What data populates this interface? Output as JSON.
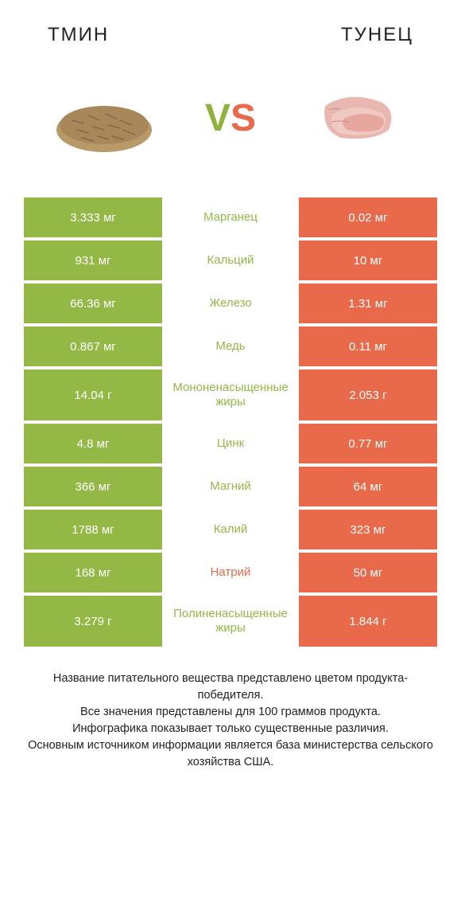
{
  "left_title": "ТМИН",
  "right_title": "ТУНЕЦ",
  "vs_v": "V",
  "vs_s": "S",
  "colors": {
    "left": "#94b846",
    "right": "#e86a4a",
    "mid_bg": "#ffffff",
    "text_white": "#ffffff"
  },
  "rows": [
    {
      "left": "3.333 мг",
      "mid": "Марганец",
      "right": "0.02 мг",
      "winner": "left",
      "tall": false
    },
    {
      "left": "931 мг",
      "mid": "Кальций",
      "right": "10 мг",
      "winner": "left",
      "tall": false
    },
    {
      "left": "66.36 мг",
      "mid": "Железо",
      "right": "1.31 мг",
      "winner": "left",
      "tall": false
    },
    {
      "left": "0.867 мг",
      "mid": "Медь",
      "right": "0.11 мг",
      "winner": "left",
      "tall": false
    },
    {
      "left": "14.04 г",
      "mid": "Мононенасыщенные жиры",
      "right": "2.053 г",
      "winner": "left",
      "tall": true
    },
    {
      "left": "4.8 мг",
      "mid": "Цинк",
      "right": "0.77 мг",
      "winner": "left",
      "tall": false
    },
    {
      "left": "366 мг",
      "mid": "Магний",
      "right": "64 мг",
      "winner": "left",
      "tall": false
    },
    {
      "left": "1788 мг",
      "mid": "Калий",
      "right": "323 мг",
      "winner": "left",
      "tall": false
    },
    {
      "left": "168 мг",
      "mid": "Натрий",
      "right": "50 мг",
      "winner": "right",
      "tall": false
    },
    {
      "left": "3.279 г",
      "mid": "Полиненасыщенные жиры",
      "right": "1.844 г",
      "winner": "left",
      "tall": true
    }
  ],
  "footer": "Название питательного вещества представлено цветом продукта-победителя.\nВсе значения представлены для 100 граммов продукта.\nИнфографика показывает только существенные различия.\nОсновным источником информации является база министерства сельского хозяйства США."
}
